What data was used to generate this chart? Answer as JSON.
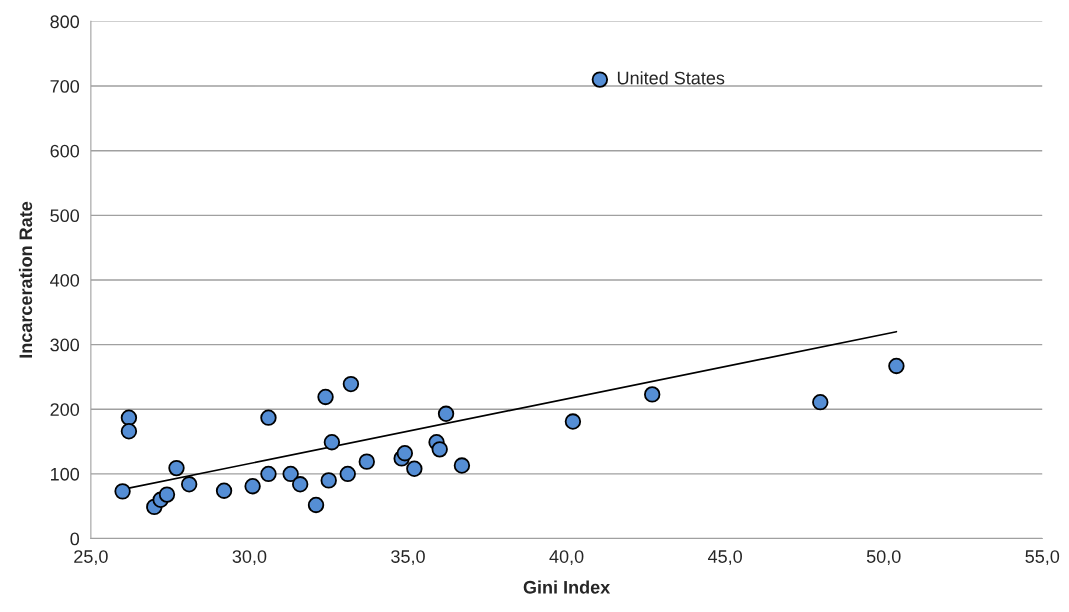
{
  "chart_data": {
    "type": "scatter",
    "xlabel": "Gini Index",
    "ylabel": "Incarceration Rate",
    "xlim": [
      25,
      55
    ],
    "xticks": [
      {
        "value": 25,
        "label": "25,0"
      },
      {
        "value": 30,
        "label": "30,0"
      },
      {
        "value": 35,
        "label": "35,0"
      },
      {
        "value": 40,
        "label": "40,0"
      },
      {
        "value": 45,
        "label": "45,0"
      },
      {
        "value": 50,
        "label": "50,0"
      },
      {
        "value": 55,
        "label": "55,0"
      }
    ],
    "ylim": [
      0,
      800
    ],
    "yticks": [
      0,
      100,
      200,
      300,
      400,
      500,
      600,
      700,
      800
    ],
    "grid": "y",
    "marker": "circle",
    "legend": false,
    "series": [
      {
        "color": "#558ed5",
        "x": [
          26.0,
          26.2,
          26.2,
          27.0,
          27.2,
          27.4,
          27.7,
          28.1,
          29.2,
          30.1,
          30.6,
          30.6,
          31.3,
          31.6,
          32.1,
          32.4,
          32.5,
          32.6,
          33.1,
          33.2,
          33.7,
          34.8,
          34.9,
          35.2,
          35.9,
          36.0,
          36.2,
          36.7,
          40.2,
          42.7,
          48.0,
          50.4,
          41.05
        ],
        "values": [
          73,
          187,
          166,
          49,
          60,
          68,
          109,
          84,
          74,
          81,
          100,
          187,
          100,
          84,
          52,
          219,
          90,
          149,
          100,
          239,
          119,
          124,
          132,
          108,
          149,
          138,
          193,
          113,
          181,
          223,
          211,
          267,
          710
        ]
      },
      {
        "type": "line",
        "color": "#000000",
        "x": [
          26.0,
          50.4
        ],
        "values": [
          76,
          320
        ],
        "marker": "none"
      }
    ],
    "annotations": [
      {
        "text": "United States",
        "x": 41.05,
        "y": 710
      }
    ]
  }
}
